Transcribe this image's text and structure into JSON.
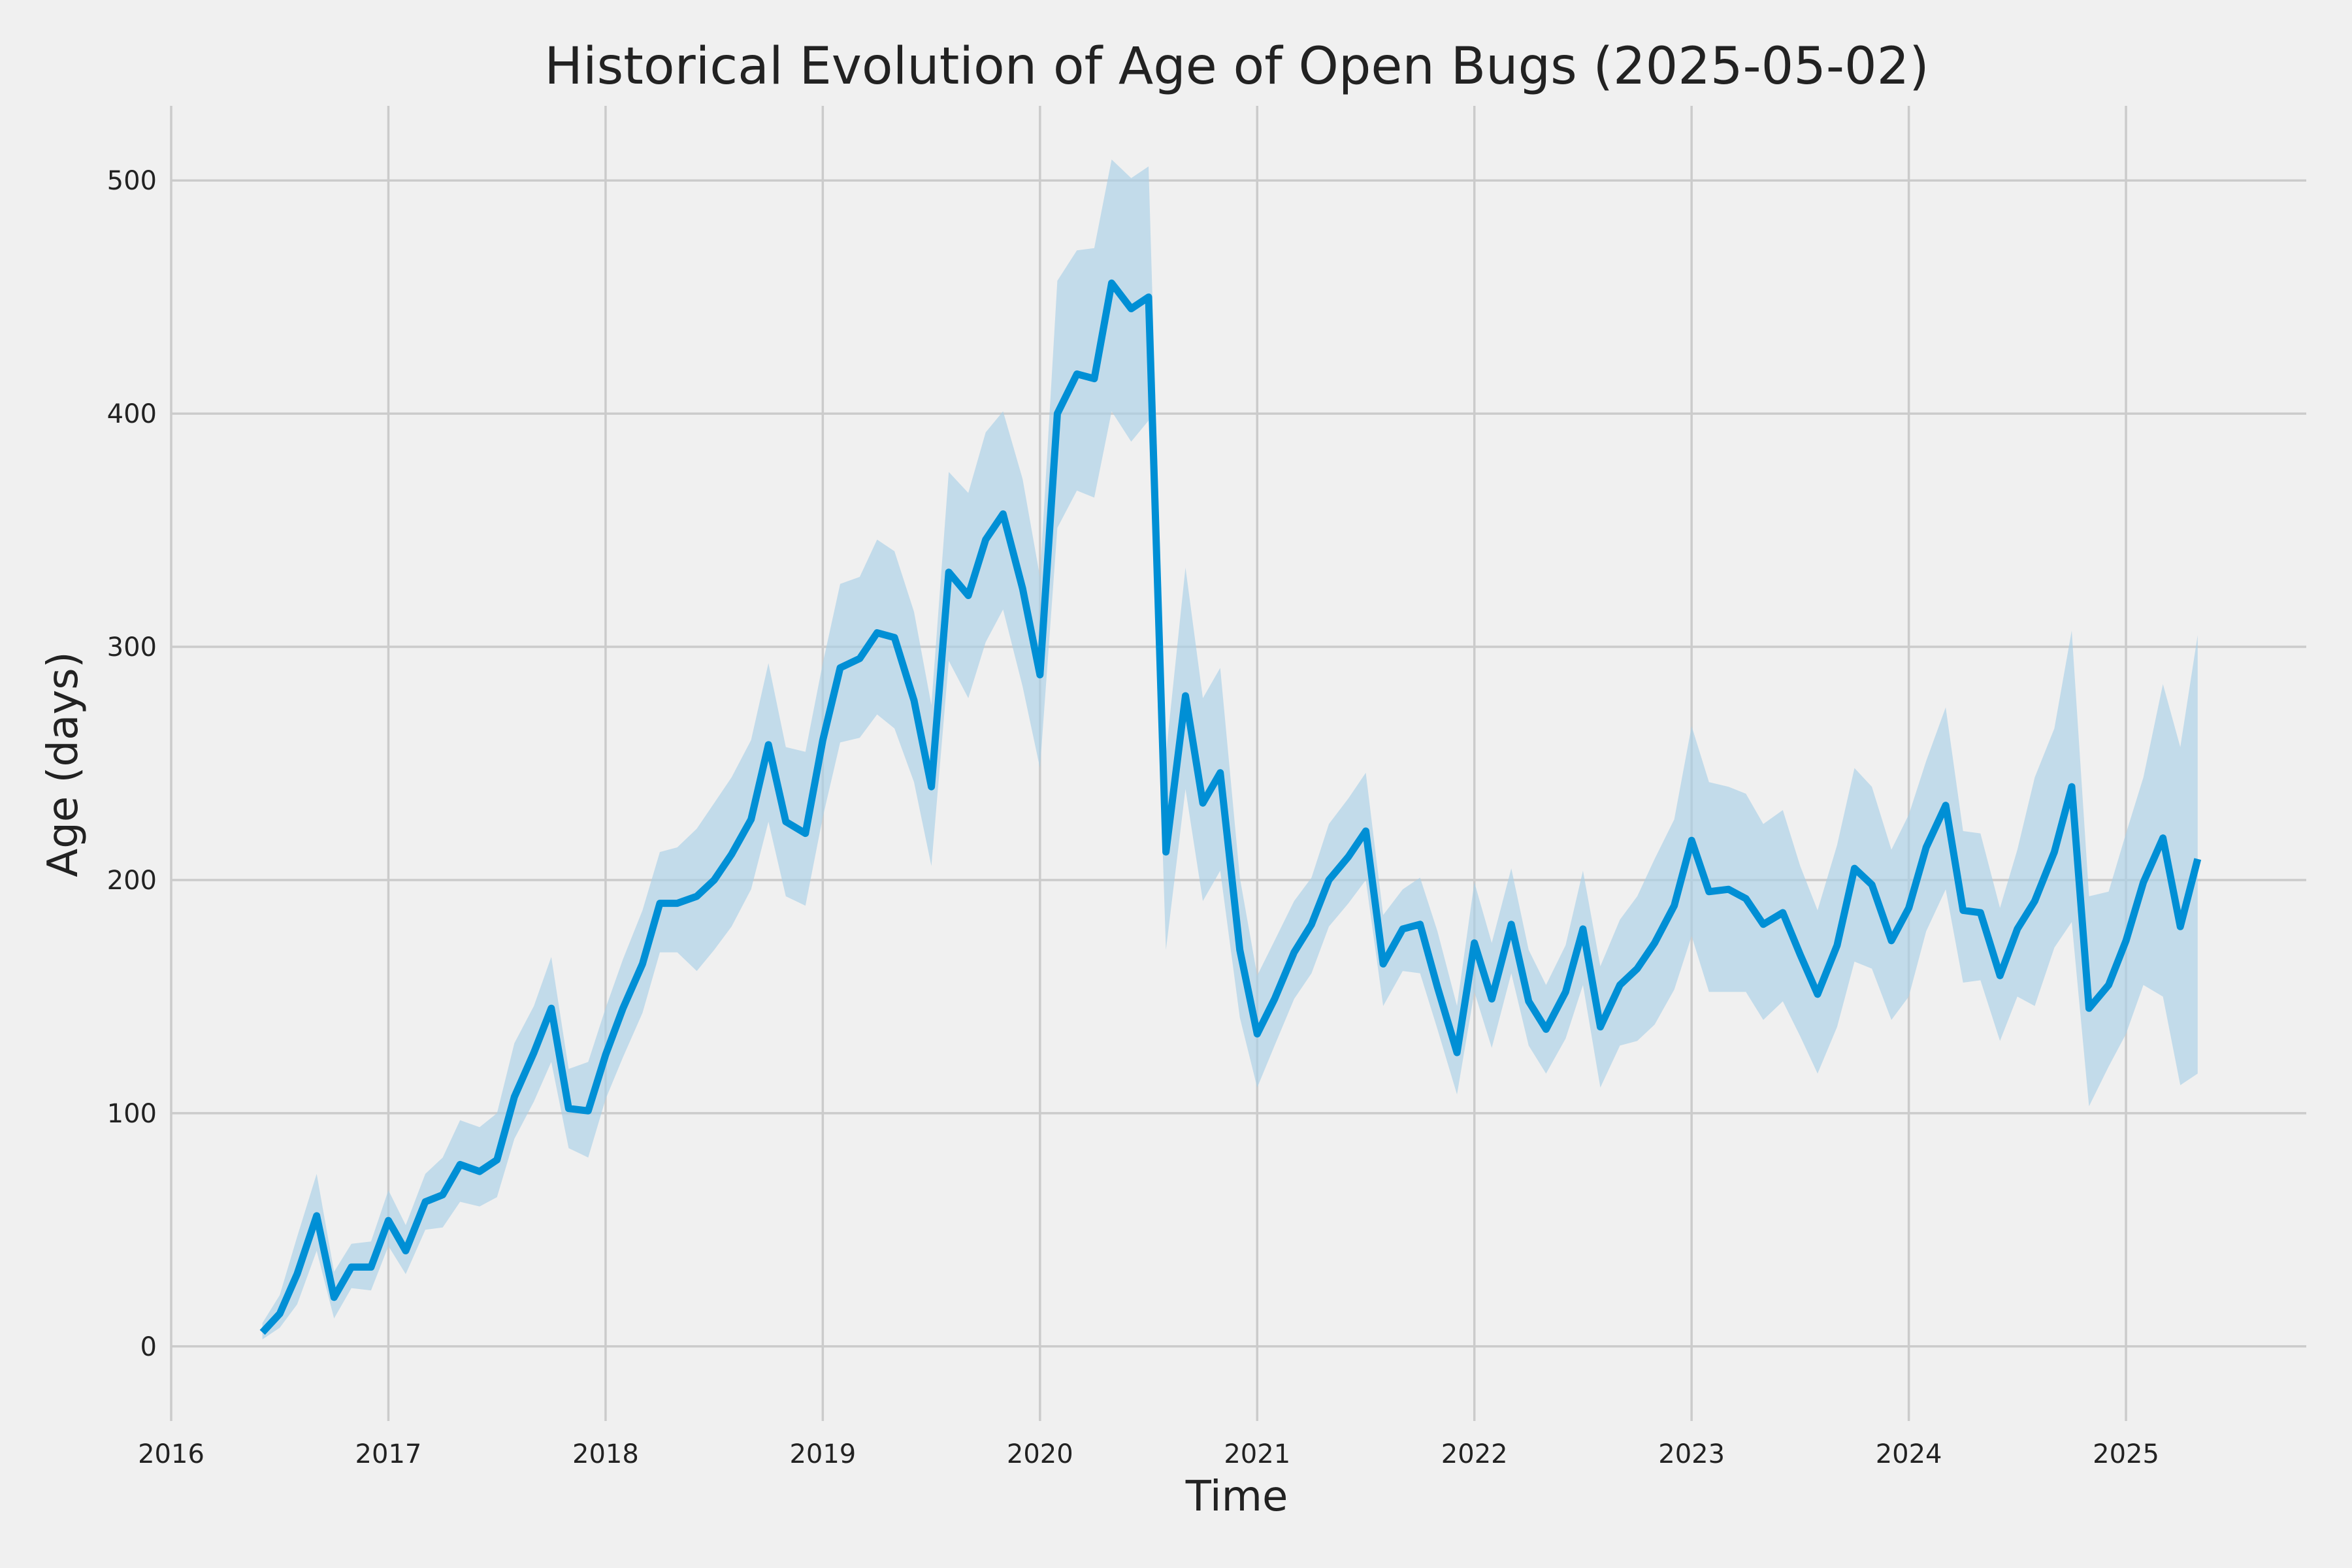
{
  "chart_data": {
    "type": "line",
    "title": "Historical Evolution of Age of Open Bugs (2025-05-02)",
    "xlabel": "Time",
    "ylabel": "Age (days)",
    "x_ticks": [
      "2016",
      "2017",
      "2018",
      "2019",
      "2020",
      "2021",
      "2022",
      "2023",
      "2024",
      "2025"
    ],
    "y_ticks": [
      0,
      100,
      200,
      300,
      400,
      500
    ],
    "xlim": [
      2016.0,
      2025.83
    ],
    "ylim": [
      -32,
      532
    ],
    "grid": true,
    "colors": {
      "line": "#008fd5",
      "band": "#a9d0e6",
      "background": "#f0f0f0"
    },
    "series": [
      {
        "x": [
          2016.42,
          2016.5,
          2016.58,
          2016.67,
          2016.75,
          2016.83,
          2016.92,
          2017.0,
          2017.08,
          2017.17,
          2017.25,
          2017.33,
          2017.42,
          2017.5,
          2017.58,
          2017.67,
          2017.75,
          2017.83,
          2017.92,
          2018.0,
          2018.08,
          2018.17,
          2018.25,
          2018.33,
          2018.42,
          2018.5,
          2018.58,
          2018.67,
          2018.75,
          2018.83,
          2018.92,
          2019.0,
          2019.08,
          2019.17,
          2019.25,
          2019.33,
          2019.42,
          2019.5,
          2019.58,
          2019.67,
          2019.75,
          2019.83,
          2019.92,
          2020.0,
          2020.08,
          2020.17,
          2020.25,
          2020.33,
          2020.42,
          2020.5,
          2020.58,
          2020.67,
          2020.75,
          2020.83,
          2020.92,
          2021.0,
          2021.08,
          2021.17,
          2021.25,
          2021.33,
          2021.42,
          2021.5,
          2021.58,
          2021.67,
          2021.75,
          2021.83,
          2021.92,
          2022.0,
          2022.08,
          2022.17,
          2022.25,
          2022.33,
          2022.42,
          2022.5,
          2022.58,
          2022.67,
          2022.75,
          2022.83,
          2022.92,
          2023.0,
          2023.08,
          2023.17,
          2023.25,
          2023.33,
          2023.42,
          2023.5,
          2023.58,
          2023.67,
          2023.75,
          2023.83,
          2023.92,
          2024.0,
          2024.08,
          2024.17,
          2024.25,
          2024.33,
          2024.42,
          2024.5,
          2024.58,
          2024.67,
          2024.75,
          2024.83,
          2024.92,
          2025.0,
          2025.08,
          2025.17,
          2025.25,
          2025.33
        ],
        "mean": [
          6,
          14,
          31,
          56,
          21,
          34,
          34,
          54,
          41,
          62,
          65,
          78,
          75,
          80,
          107,
          126,
          145,
          102,
          101,
          125,
          145,
          164,
          190,
          190,
          193,
          200,
          211,
          226,
          258,
          225,
          220,
          260,
          291,
          295,
          306,
          304,
          277,
          240,
          332,
          322,
          346,
          357,
          325,
          288,
          400,
          417,
          415,
          456,
          445,
          450,
          212,
          279,
          233,
          246,
          170,
          134,
          149,
          169,
          181,
          200,
          210,
          221,
          164,
          179,
          181,
          154,
          126,
          173,
          149,
          181,
          148,
          136,
          152,
          179,
          137,
          155,
          162,
          173,
          189,
          217,
          195,
          196,
          192,
          181,
          186,
          168,
          151,
          172,
          205,
          198,
          174,
          188,
          214,
          232,
          187,
          186,
          159,
          179,
          191,
          212,
          240,
          145,
          155,
          174,
          199,
          218,
          180,
          209
        ],
        "lower": [
          3,
          8,
          18,
          41,
          12,
          25,
          24,
          43,
          31,
          50,
          51,
          62,
          60,
          64,
          89,
          105,
          122,
          85,
          81,
          106,
          124,
          143,
          169,
          169,
          161,
          170,
          180,
          196,
          225,
          193,
          189,
          227,
          259,
          261,
          271,
          265,
          242,
          206,
          294,
          278,
          302,
          316,
          283,
          248,
          351,
          367,
          364,
          401,
          388,
          397,
          170,
          239,
          191,
          204,
          141,
          111,
          129,
          149,
          160,
          180,
          190,
          200,
          146,
          161,
          160,
          136,
          108,
          152,
          128,
          160,
          129,
          117,
          132,
          155,
          111,
          129,
          131,
          138,
          153,
          176,
          152,
          152,
          152,
          140,
          148,
          133,
          117,
          137,
          165,
          162,
          140,
          150,
          178,
          196,
          156,
          157,
          131,
          150,
          146,
          171,
          182,
          103,
          120,
          134,
          155,
          150,
          112,
          117
        ],
        "upper": [
          10,
          22,
          47,
          74,
          32,
          44,
          45,
          67,
          52,
          74,
          81,
          97,
          94,
          100,
          130,
          146,
          167,
          119,
          122,
          145,
          166,
          187,
          212,
          214,
          222,
          233,
          244,
          260,
          293,
          257,
          255,
          293,
          327,
          330,
          346,
          341,
          315,
          275,
          375,
          366,
          392,
          401,
          372,
          330,
          457,
          470,
          471,
          509,
          501,
          506,
          254,
          334,
          278,
          291,
          201,
          159,
          174,
          191,
          201,
          224,
          235,
          246,
          185,
          196,
          201,
          178,
          146,
          199,
          173,
          205,
          170,
          155,
          172,
          204,
          163,
          183,
          193,
          209,
          226,
          266,
          242,
          240,
          237,
          224,
          230,
          206,
          187,
          215,
          248,
          240,
          213,
          228,
          251,
          274,
          221,
          220,
          188,
          213,
          244,
          265,
          307,
          193,
          195,
          220,
          244,
          284,
          257,
          305
        ]
      }
    ]
  }
}
